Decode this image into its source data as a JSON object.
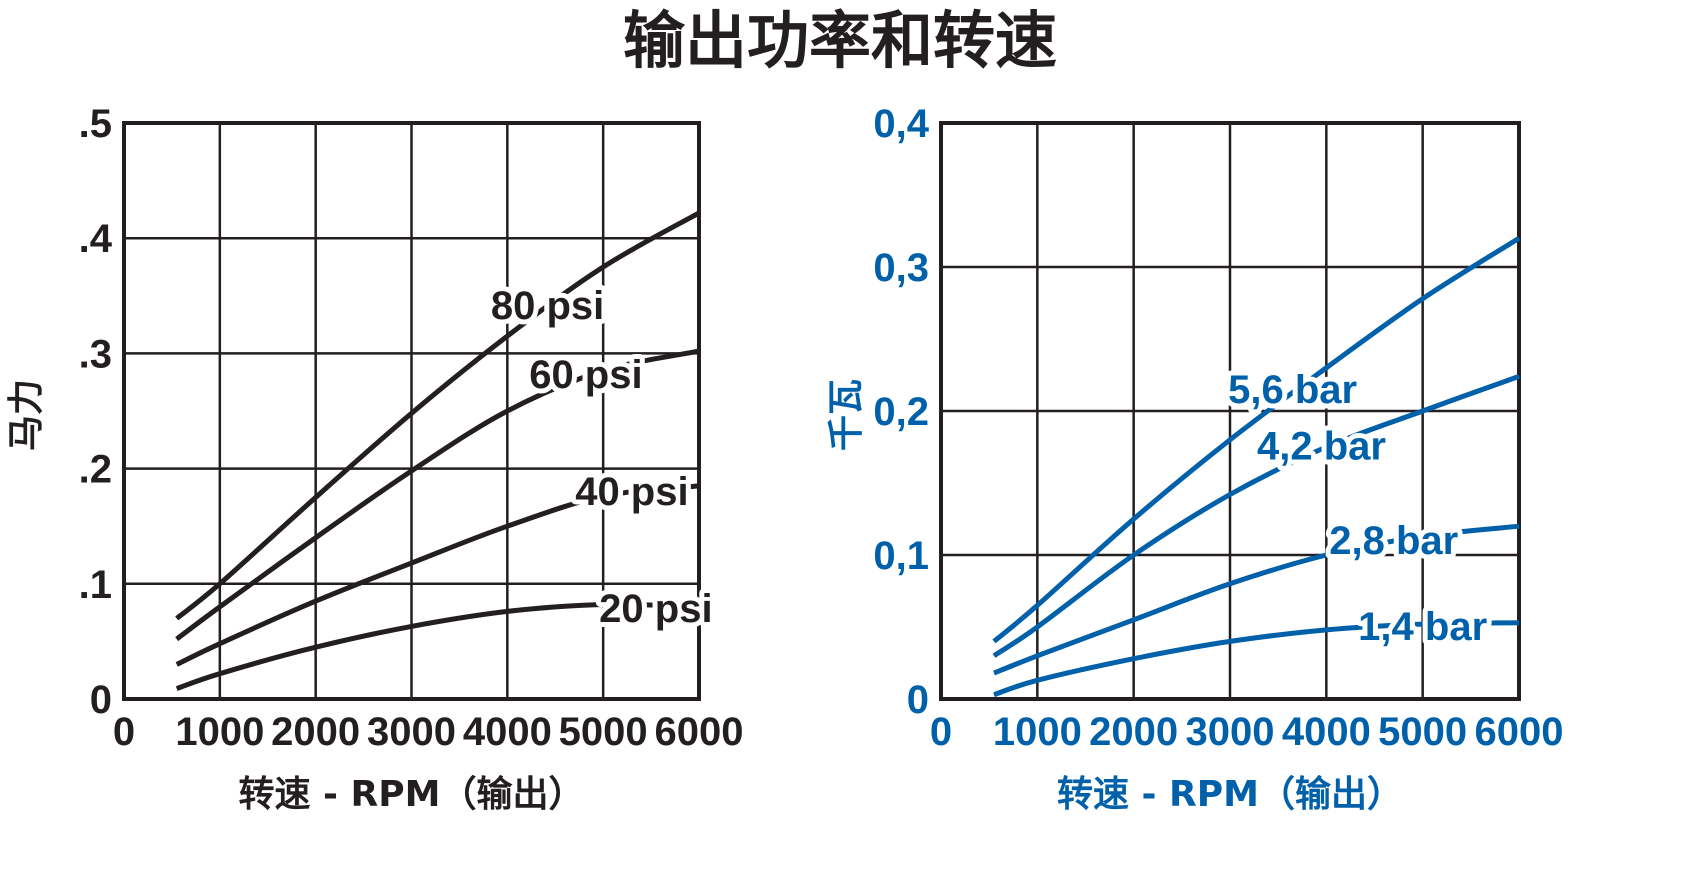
{
  "title": "输出功率和转速",
  "colors": {
    "left": "#231f20",
    "right": "#0060a9"
  },
  "chart_data": [
    {
      "type": "line",
      "xlabel": "转速 - RPM（输出）",
      "ylabel": "马力",
      "xlim": [
        0,
        6000
      ],
      "ylim": [
        0,
        0.5
      ],
      "x_ticks": [
        0,
        1000,
        2000,
        3000,
        4000,
        5000,
        6000
      ],
      "x_tick_labels": [
        "0",
        "1000",
        "2000",
        "3000",
        "4000",
        "5000",
        "6000"
      ],
      "y_ticks": [
        0,
        0.1,
        0.2,
        0.3,
        0.4,
        0.5
      ],
      "y_tick_labels": [
        "0",
        ".1",
        ".2",
        ".3",
        ".4",
        ".5"
      ],
      "grid": true,
      "series": [
        {
          "name": "80 psi",
          "x": [
            550,
            1000,
            2000,
            3000,
            4000,
            5000,
            6000
          ],
          "y": [
            0.07,
            0.1,
            0.175,
            0.248,
            0.315,
            0.375,
            0.422
          ]
        },
        {
          "name": "60 psi",
          "x": [
            550,
            1000,
            2000,
            3000,
            4000,
            5000,
            6000
          ],
          "y": [
            0.052,
            0.08,
            0.14,
            0.198,
            0.25,
            0.285,
            0.302
          ]
        },
        {
          "name": "40 psi",
          "x": [
            550,
            1000,
            2000,
            3000,
            4000,
            5000,
            6000
          ],
          "y": [
            0.03,
            0.048,
            0.085,
            0.118,
            0.15,
            0.176,
            0.185
          ]
        },
        {
          "name": "20 psi",
          "x": [
            550,
            1000,
            2000,
            3000,
            4000,
            5000,
            6000
          ],
          "y": [
            0.009,
            0.022,
            0.045,
            0.063,
            0.076,
            0.082,
            0.08
          ]
        }
      ]
    },
    {
      "type": "line",
      "xlabel": "转速 - RPM（输出）",
      "ylabel": "千瓦",
      "xlim": [
        0,
        6000
      ],
      "ylim": [
        0,
        0.4
      ],
      "x_ticks": [
        0,
        1000,
        2000,
        3000,
        4000,
        5000,
        6000
      ],
      "x_tick_labels": [
        "0",
        "1000",
        "2000",
        "3000",
        "4000",
        "5000",
        "6000"
      ],
      "y_ticks": [
        0,
        0.1,
        0.2,
        0.3,
        0.4
      ],
      "y_tick_labels": [
        "0",
        "0,1",
        "0,2",
        "0,3",
        "0,4"
      ],
      "grid": true,
      "series": [
        {
          "name": "5,6 bar",
          "x": [
            550,
            1000,
            2000,
            3000,
            4000,
            5000,
            6000
          ],
          "y": [
            0.04,
            0.065,
            0.125,
            0.18,
            0.23,
            0.278,
            0.32
          ]
        },
        {
          "name": "4,2 bar",
          "x": [
            550,
            1000,
            2000,
            3000,
            4000,
            5000,
            6000
          ],
          "y": [
            0.03,
            0.05,
            0.1,
            0.142,
            0.175,
            0.2,
            0.224
          ]
        },
        {
          "name": "2,8 bar",
          "x": [
            550,
            1000,
            2000,
            3000,
            4000,
            5000,
            6000
          ],
          "y": [
            0.018,
            0.03,
            0.055,
            0.08,
            0.1,
            0.113,
            0.12
          ]
        },
        {
          "name": "1,4 bar",
          "x": [
            550,
            1000,
            2000,
            3000,
            4000,
            5000,
            6000
          ],
          "y": [
            0.003,
            0.013,
            0.028,
            0.04,
            0.048,
            0.052,
            0.053
          ]
        }
      ]
    }
  ]
}
